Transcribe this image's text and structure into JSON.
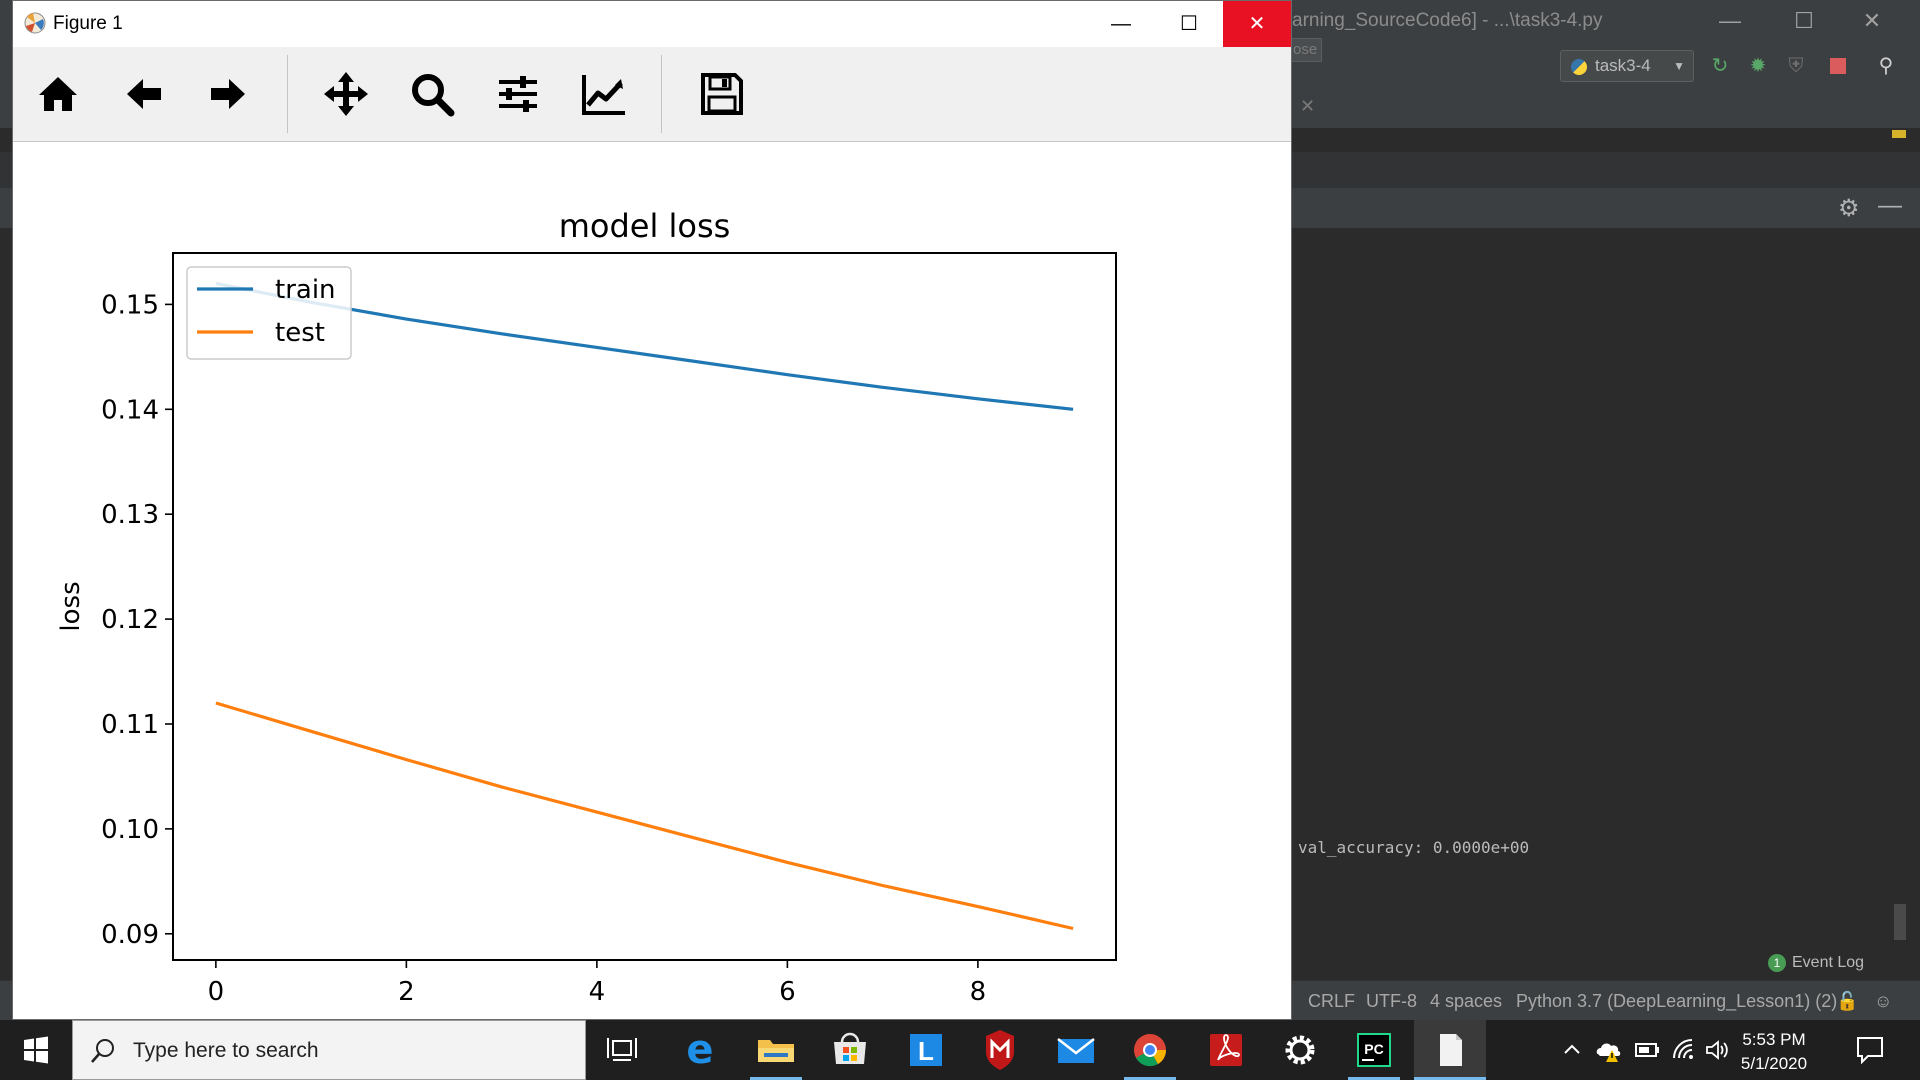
{
  "ide": {
    "title": "arning_SourceCode6] - ...\\task3-4.py",
    "close_tooltip": "Close",
    "run_config": "task3-4",
    "console_text": "val_accuracy: 0.0000e+00",
    "event_log": "Event Log",
    "event_log_count": "1",
    "status": {
      "line_sep": "CRLF",
      "encoding": "UTF-8",
      "indent": "4 spaces",
      "interpreter": "Python 3.7 (DeepLearning_Lesson1) (2)"
    }
  },
  "figure": {
    "window_title": "Figure 1",
    "toolbar": [
      "home-icon",
      "back-icon",
      "forward-icon",
      "pan-icon",
      "zoom-icon",
      "subplots-icon",
      "customize-icon",
      "save-icon"
    ]
  },
  "chart_data": {
    "type": "line",
    "title": "model loss",
    "xlabel": "",
    "ylabel": "loss",
    "x": [
      0,
      1,
      2,
      3,
      4,
      5,
      6,
      7,
      8,
      9
    ],
    "xlim": [
      -0.45,
      9.45
    ],
    "ylim": [
      0.0875,
      0.1549
    ],
    "xticks": [
      0,
      2,
      4,
      6,
      8
    ],
    "yticks": [
      0.09,
      0.1,
      0.11,
      0.12,
      0.13,
      0.14,
      0.15
    ],
    "ytick_labels": [
      "0.09",
      "0.10",
      "0.11",
      "0.12",
      "0.13",
      "0.14",
      "0.15"
    ],
    "grid": false,
    "legend_position": "upper-left",
    "series": [
      {
        "name": "train",
        "color": "#1f77b4",
        "values": [
          0.152,
          0.1502,
          0.1486,
          0.1472,
          0.1459,
          0.1446,
          0.1433,
          0.1421,
          0.141,
          0.14
        ]
      },
      {
        "name": "test",
        "color": "#ff7f0e",
        "values": [
          0.112,
          0.1093,
          0.1066,
          0.104,
          0.1016,
          0.0992,
          0.0968,
          0.0946,
          0.0926,
          0.0905
        ]
      }
    ]
  },
  "taskbar": {
    "search_placeholder": "Type here to search",
    "time": "5:53 PM",
    "date": "5/1/2020"
  }
}
